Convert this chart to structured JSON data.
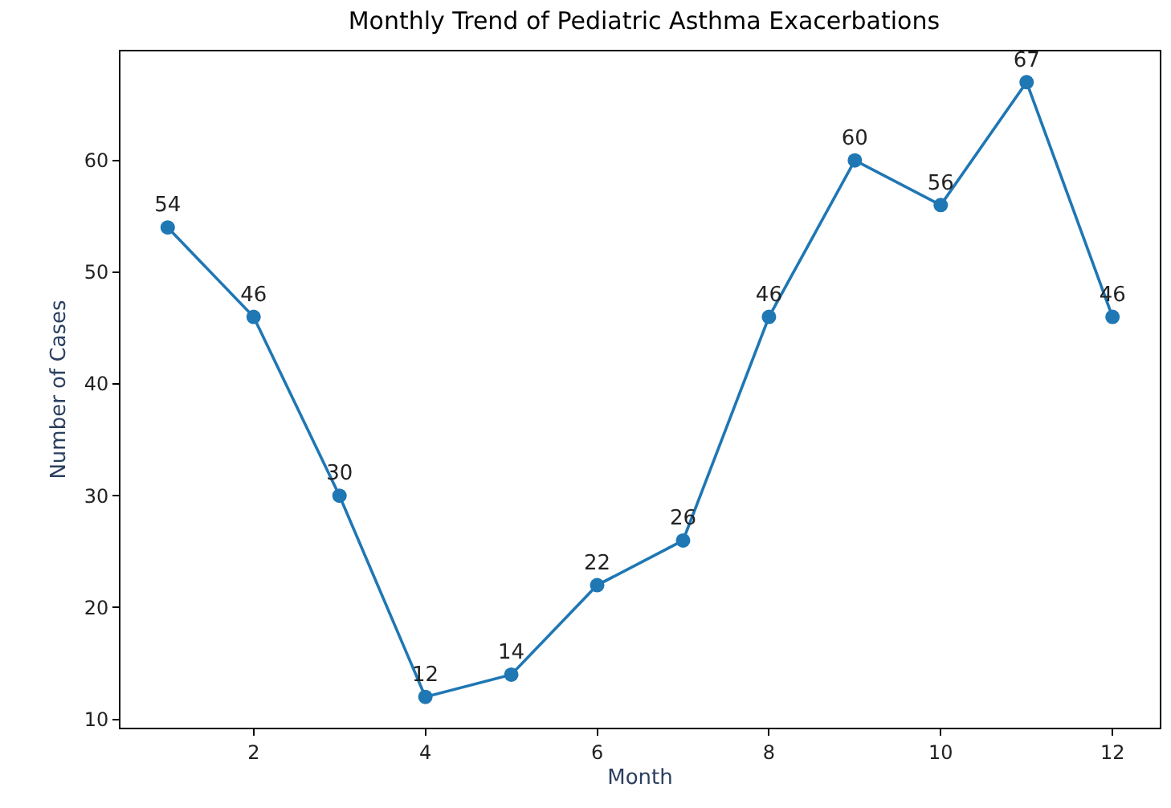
{
  "chart_data": {
    "type": "line",
    "title": "Monthly Trend of Pediatric Asthma Exacerbations",
    "xlabel": "Month",
    "ylabel": "Number of Cases",
    "x": [
      1,
      2,
      3,
      4,
      5,
      6,
      7,
      8,
      9,
      10,
      11,
      12
    ],
    "series": [
      {
        "color": "#1f77b4",
        "values": [
          54,
          46,
          30,
          12,
          14,
          22,
          26,
          46,
          60,
          56,
          67,
          46
        ]
      }
    ],
    "xlim": [
      0.45,
      12.55
    ],
    "ylim": [
      9.25,
      69.75
    ],
    "xticks": [
      2,
      4,
      6,
      8,
      10,
      12
    ],
    "yticks": [
      10,
      20,
      30,
      40,
      50,
      60
    ],
    "marker": "circle",
    "line_style": "solid",
    "data_labels": true,
    "legend": false
  }
}
